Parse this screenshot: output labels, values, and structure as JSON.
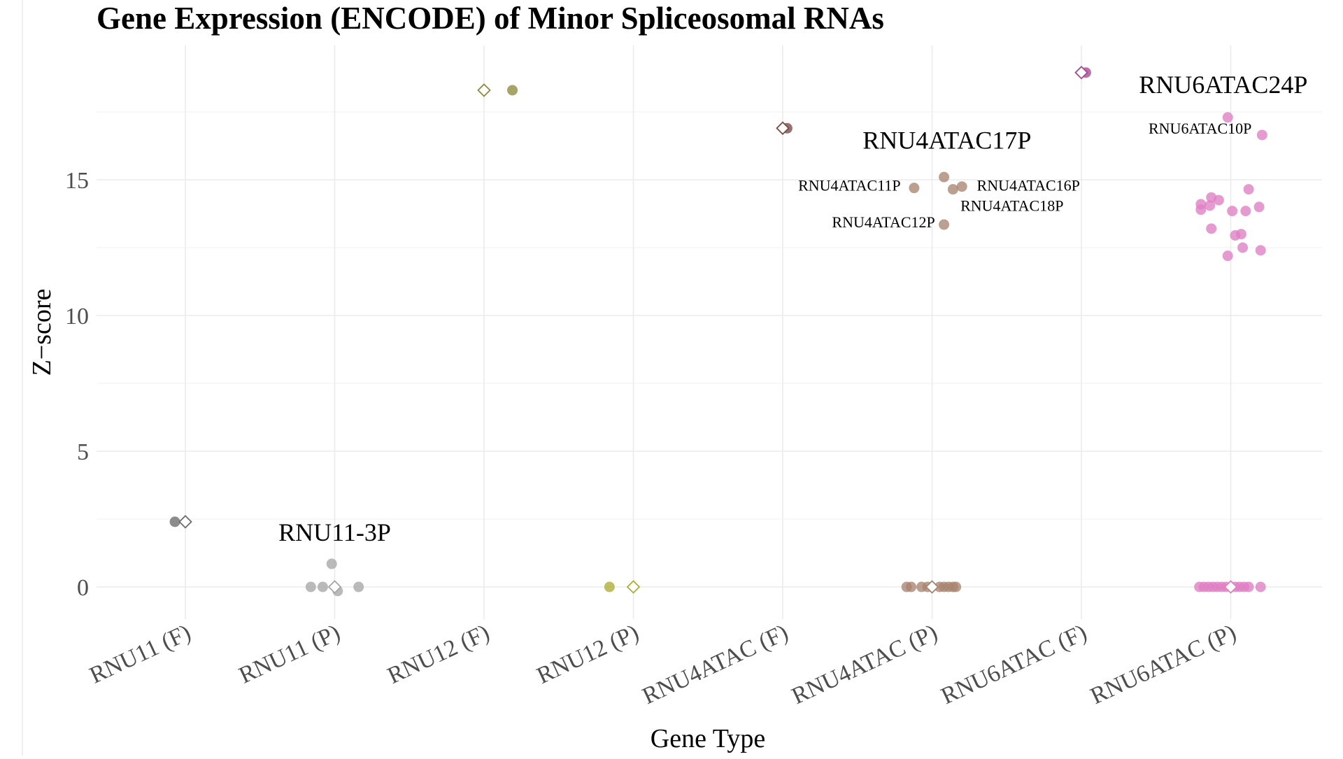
{
  "chart_data": {
    "type": "scatter",
    "title": "Gene Expression (ENCODE) of Minor Spliceosomal RNAs",
    "xlabel": "Gene Type",
    "ylabel": "Z−score",
    "ylim": [
      -1,
      20
    ],
    "yticks": [
      0,
      5,
      10,
      15
    ],
    "grid": true,
    "legend": "none",
    "categories": [
      "RNU11 (F)",
      "RNU11 (P)",
      "RNU12 (F)",
      "RNU12 (P)",
      "RNU4ATAC (F)",
      "RNU4ATAC (P)",
      "RNU6ATAC (F)",
      "RNU6ATAC (P)"
    ],
    "colors": [
      "#6b6b6b",
      "#a6a6a6",
      "#8f8a3c",
      "#adad35",
      "#7b4a45",
      "#a88470",
      "#a8478f",
      "#df7fc3"
    ],
    "series": [
      {
        "category": "RNU11 (F)",
        "points": [
          {
            "dx": -0.07,
            "y": 2.4
          }
        ],
        "median": 2.4
      },
      {
        "category": "RNU11 (P)",
        "points": [
          {
            "dx": -0.16,
            "y": 0
          },
          {
            "dx": -0.08,
            "y": 0
          },
          {
            "dx": -0.02,
            "y": 0.85
          },
          {
            "dx": 0.02,
            "y": -0.15
          },
          {
            "dx": 0.16,
            "y": 0
          }
        ],
        "median": 0
      },
      {
        "category": "RNU12 (F)",
        "points": [
          {
            "dx": 0.19,
            "y": 18.3
          }
        ],
        "median": 18.3
      },
      {
        "category": "RNU12 (P)",
        "points": [
          {
            "dx": -0.16,
            "y": 0
          }
        ],
        "median": 0
      },
      {
        "category": "RNU4ATAC (F)",
        "points": [
          {
            "dx": 0.03,
            "y": 16.9
          }
        ],
        "median": 16.9
      },
      {
        "category": "RNU4ATAC (P)",
        "points": [
          {
            "dx": -0.12,
            "y": 14.7
          },
          {
            "dx": 0.08,
            "y": 15.1
          },
          {
            "dx": 0.14,
            "y": 14.65
          },
          {
            "dx": 0.2,
            "y": 14.75
          },
          {
            "dx": 0.08,
            "y": 13.35
          },
          {
            "dx": -0.17,
            "y": 0
          },
          {
            "dx": -0.14,
            "y": 0
          },
          {
            "dx": -0.07,
            "y": 0
          },
          {
            "dx": -0.03,
            "y": 0
          },
          {
            "dx": 0.05,
            "y": 0
          },
          {
            "dx": 0.08,
            "y": 0
          },
          {
            "dx": 0.11,
            "y": 0
          },
          {
            "dx": 0.14,
            "y": 0
          },
          {
            "dx": 0.16,
            "y": 0
          }
        ],
        "median": 0
      },
      {
        "category": "RNU6ATAC (F)",
        "points": [
          {
            "dx": 0.03,
            "y": 18.95
          }
        ],
        "median": 18.95
      },
      {
        "category": "RNU6ATAC (P)",
        "points": [
          {
            "dx": -0.02,
            "y": 17.3
          },
          {
            "dx": 0.21,
            "y": 16.65
          },
          {
            "dx": -0.2,
            "y": 14.1
          },
          {
            "dx": -0.2,
            "y": 13.9
          },
          {
            "dx": -0.14,
            "y": 14.05
          },
          {
            "dx": -0.13,
            "y": 14.35
          },
          {
            "dx": -0.08,
            "y": 14.25
          },
          {
            "dx": 0.12,
            "y": 14.65
          },
          {
            "dx": 0.01,
            "y": 13.85
          },
          {
            "dx": 0.1,
            "y": 13.85
          },
          {
            "dx": 0.19,
            "y": 14.0
          },
          {
            "dx": -0.13,
            "y": 13.2
          },
          {
            "dx": 0.07,
            "y": 13.0
          },
          {
            "dx": 0.03,
            "y": 12.95
          },
          {
            "dx": 0.08,
            "y": 12.5
          },
          {
            "dx": 0.2,
            "y": 12.4
          },
          {
            "dx": -0.02,
            "y": 12.2
          },
          {
            "dx": -0.21,
            "y": 0
          },
          {
            "dx": -0.18,
            "y": 0
          },
          {
            "dx": -0.15,
            "y": 0
          },
          {
            "dx": -0.12,
            "y": 0
          },
          {
            "dx": -0.09,
            "y": 0
          },
          {
            "dx": -0.06,
            "y": 0
          },
          {
            "dx": -0.03,
            "y": 0
          },
          {
            "dx": 0.03,
            "y": 0
          },
          {
            "dx": 0.06,
            "y": 0
          },
          {
            "dx": 0.09,
            "y": 0
          },
          {
            "dx": 0.12,
            "y": 0
          },
          {
            "dx": 0.2,
            "y": 0
          }
        ],
        "median": 0
      }
    ],
    "annotations": [
      {
        "text": "RNU11-3P",
        "category": "RNU11 (P)",
        "dx": 0.0,
        "y": 1.7,
        "size": "large",
        "anchor": "middle"
      },
      {
        "text": "RNU4ATAC17P",
        "category": "RNU4ATAC (P)",
        "dx": 0.1,
        "y": 16.15,
        "size": "large",
        "anchor": "middle"
      },
      {
        "text": "RNU4ATAC11P",
        "category": "RNU4ATAC (P)",
        "dx": -0.21,
        "y": 14.6,
        "size": "small",
        "anchor": "end"
      },
      {
        "text": "RNU4ATAC16P",
        "category": "RNU4ATAC (P)",
        "dx": 0.3,
        "y": 14.6,
        "size": "small",
        "anchor": "start"
      },
      {
        "text": "RNU4ATAC18P",
        "category": "RNU4ATAC (P)",
        "dx": 0.19,
        "y": 13.85,
        "size": "small",
        "anchor": "start"
      },
      {
        "text": "RNU4ATAC12P",
        "category": "RNU4ATAC (P)",
        "dx": 0.02,
        "y": 13.25,
        "size": "small",
        "anchor": "end"
      },
      {
        "text": "RNU6ATAC24P",
        "category": "RNU6ATAC (P)",
        "dx": -0.05,
        "y": 18.2,
        "size": "large",
        "anchor": "middle"
      },
      {
        "text": "RNU6ATAC10P",
        "category": "RNU6ATAC (P)",
        "dx": 0.14,
        "y": 16.7,
        "size": "small",
        "anchor": "end"
      }
    ]
  }
}
